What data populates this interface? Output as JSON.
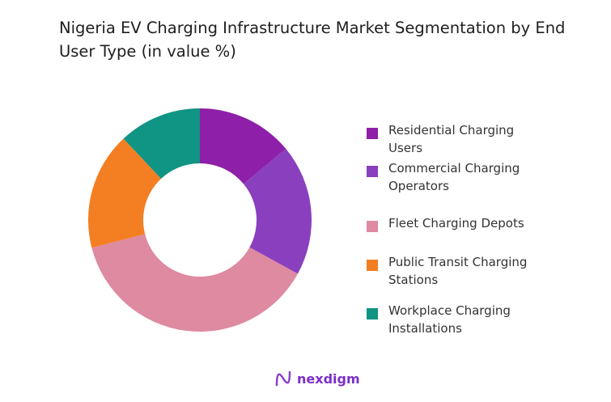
{
  "title": "Nigeria EV Charging Infrastructure Market Segmentation by End User Type (in value %)",
  "brand": "nexdigm",
  "chart_data": {
    "type": "pie",
    "variant": "donut",
    "title": "Nigeria EV Charging Infrastructure Market Segmentation by End User Type (in value %)",
    "legend_position": "right",
    "categories": [
      "Residential Charging Users",
      "Commercial Charging Operators",
      "Fleet Charging Depots",
      "Public Transit Charging Stations",
      "Workplace Charging Installations"
    ],
    "values": [
      14,
      19,
      38,
      17,
      12
    ],
    "colors": [
      "#8E1FA8",
      "#8A3FBF",
      "#DE8AA0",
      "#F47E22",
      "#109484"
    ]
  }
}
